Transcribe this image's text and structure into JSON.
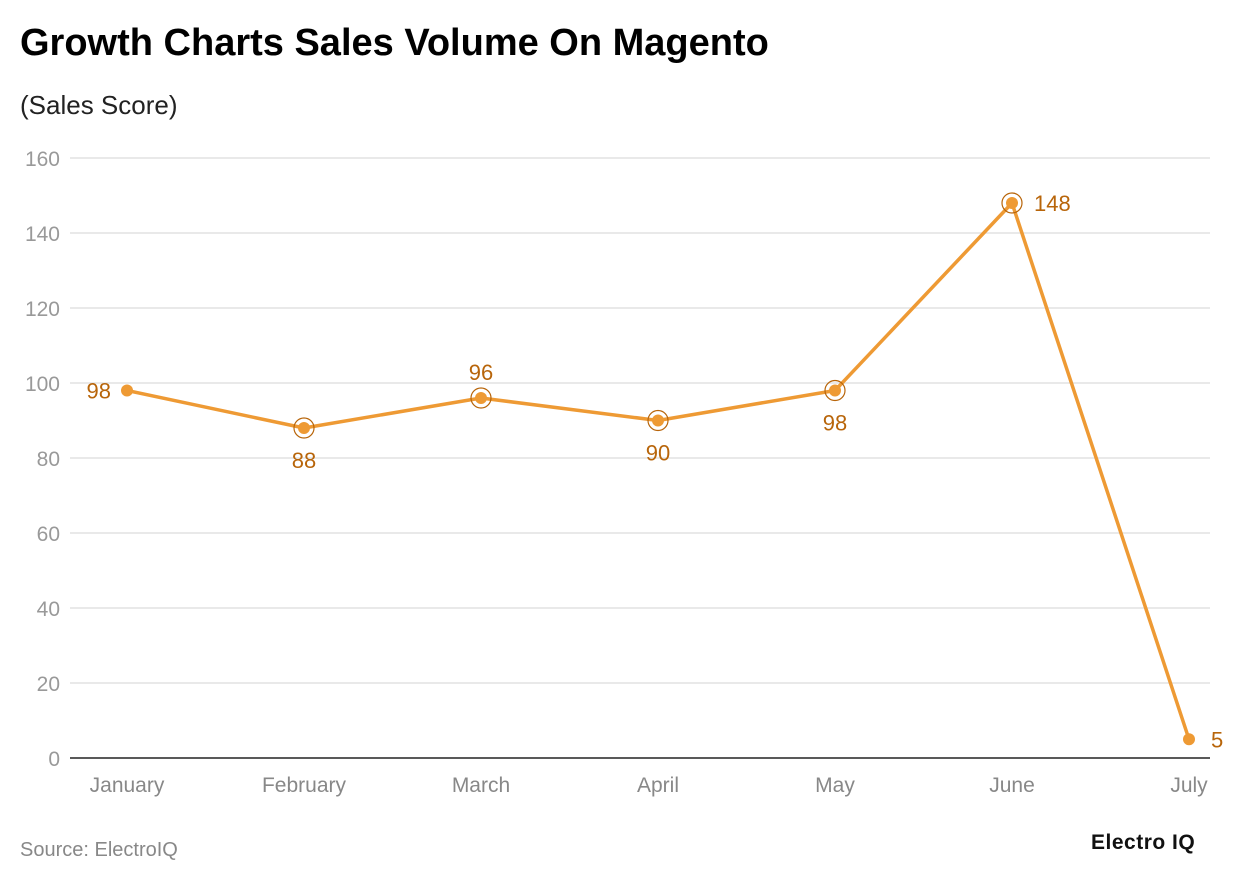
{
  "chart_data": {
    "type": "line",
    "title": "Growth Charts Sales Volume On Magento",
    "subtitle": "(Sales Score)",
    "categories": [
      "January",
      "February",
      "March",
      "April",
      "May",
      "June",
      "July"
    ],
    "series": [
      {
        "values": [
          98,
          88,
          96,
          90,
          98,
          148,
          5
        ]
      }
    ],
    "ylim": [
      0,
      160
    ],
    "yticks": [
      0,
      20,
      40,
      60,
      80,
      100,
      120,
      140,
      160
    ],
    "grid": true,
    "color": "#EE9A34",
    "label_color": "#B8650A"
  },
  "footer": {
    "source": "Source: ElectroIQ",
    "logo": "Electro IQ"
  }
}
